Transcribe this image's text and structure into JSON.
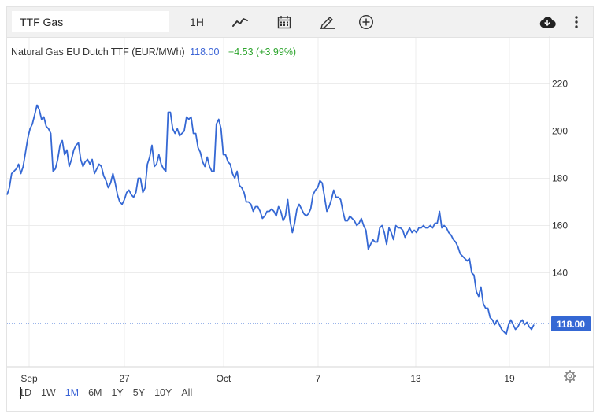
{
  "toolbar": {
    "symbol_value": "TTF Gas",
    "interval_label": "1H",
    "icons": [
      "chart-type-icon",
      "calendar-icon",
      "pencil-icon",
      "plus-circle-icon",
      "cloud-download-icon",
      "more-vertical-icon"
    ]
  },
  "legend": {
    "name": "Natural Gas EU Dutch TTF (EUR/MWh)",
    "price": "118.00",
    "change": "+4.53 (+3.99%)"
  },
  "price_tag": "118.00",
  "ranges": [
    "1D",
    "1W",
    "1M",
    "6M",
    "1Y",
    "5Y",
    "10Y",
    "All"
  ],
  "active_range": "1M",
  "colors": {
    "line": "#3568d4",
    "price_tag_bg": "#3568d4",
    "change_positive": "#2ea52e",
    "grid": "#ececec"
  },
  "chart_data": {
    "type": "line",
    "title": "Natural Gas EU Dutch TTF (EUR/MWh)",
    "y_ticks": [
      "220",
      "200",
      "180",
      "160",
      "140"
    ],
    "x_ticks": [
      "Sep",
      "27",
      "Oct",
      "7",
      "13",
      "19"
    ],
    "ylim": [
      100,
      230
    ],
    "last_value": 118.0,
    "grid": true,
    "series": [
      {
        "values": [
          173,
          176,
          182,
          183,
          184,
          186,
          182,
          185,
          191,
          197,
          201,
          203,
          207,
          211,
          209,
          205,
          206,
          202,
          201,
          199,
          183,
          184,
          188,
          194,
          196,
          190,
          192,
          185,
          188,
          192,
          194,
          195,
          188,
          185,
          187,
          188,
          186,
          188,
          182,
          184,
          186,
          185,
          181,
          179,
          176,
          178,
          182,
          178,
          173,
          170,
          169,
          171,
          174,
          175,
          173,
          172,
          174,
          180,
          180,
          174,
          176,
          186,
          189,
          194,
          185,
          186,
          190,
          186,
          184,
          183,
          208,
          208,
          201,
          199,
          201,
          198,
          199,
          200,
          206,
          205,
          206,
          199,
          199,
          193,
          191,
          187,
          185,
          189,
          185,
          183,
          183,
          203,
          205,
          201,
          190,
          190,
          187,
          186,
          182,
          180,
          183,
          177,
          176,
          174,
          170,
          170,
          169,
          166,
          168,
          168,
          166,
          163,
          164,
          166,
          166,
          167,
          166,
          164,
          168,
          166,
          162,
          164,
          171,
          162,
          157,
          161,
          167,
          169,
          167,
          165,
          164,
          165,
          167,
          173,
          175,
          176,
          179,
          178,
          172,
          166,
          168,
          171,
          175,
          172,
          172,
          171,
          166,
          162,
          162,
          164,
          163,
          162,
          160,
          161,
          163,
          160,
          158,
          150,
          152,
          154,
          153,
          153,
          159,
          160,
          157,
          152,
          159,
          157,
          154,
          160,
          159,
          159,
          158,
          155,
          157,
          159,
          157,
          158,
          157,
          159,
          159,
          160,
          159,
          159,
          160,
          159,
          161,
          161,
          166,
          159,
          160,
          159,
          157,
          156,
          154,
          153,
          151,
          148,
          147,
          146,
          145,
          146,
          140,
          139,
          132,
          130,
          134,
          127,
          125,
          125,
          121,
          120,
          118,
          120,
          118,
          116,
          115,
          114,
          118,
          120,
          118,
          116,
          117,
          119,
          120,
          118,
          119,
          117,
          116,
          118
        ]
      }
    ]
  }
}
